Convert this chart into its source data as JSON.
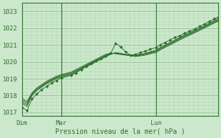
{
  "bg_color": "#cce8cc",
  "grid_major_color": "#88bb88",
  "grid_minor_color": "#aad4aa",
  "line_color": "#2d6e2d",
  "axis_color": "#2d6e2d",
  "text_color": "#2d6e2d",
  "xlabel": "Pression niveau de la mer( hPa )",
  "ylim": [
    1016.8,
    1023.5
  ],
  "yticks": [
    1017,
    1018,
    1019,
    1020,
    1021,
    1022,
    1023
  ],
  "xtick_labels": [
    "Dim",
    "Mar",
    "Lun"
  ],
  "vline_x": [
    0,
    40,
    136
  ],
  "n_points": 200,
  "series": [
    {
      "has_marker": true,
      "points": [
        [
          0,
          1017.3
        ],
        [
          5,
          1017.1
        ],
        [
          10,
          1017.8
        ],
        [
          15,
          1018.1
        ],
        [
          20,
          1018.35
        ],
        [
          25,
          1018.55
        ],
        [
          30,
          1018.75
        ],
        [
          35,
          1018.9
        ],
        [
          40,
          1019.05
        ],
        [
          50,
          1019.2
        ],
        [
          55,
          1019.35
        ],
        [
          60,
          1019.55
        ],
        [
          65,
          1019.75
        ],
        [
          70,
          1019.9
        ],
        [
          75,
          1020.05
        ],
        [
          80,
          1020.2
        ],
        [
          85,
          1020.35
        ],
        [
          90,
          1020.5
        ],
        [
          95,
          1021.1
        ],
        [
          100,
          1020.9
        ],
        [
          105,
          1020.6
        ],
        [
          110,
          1020.4
        ],
        [
          115,
          1020.45
        ],
        [
          120,
          1020.55
        ],
        [
          125,
          1020.65
        ],
        [
          130,
          1020.75
        ],
        [
          136,
          1020.85
        ],
        [
          140,
          1021.0
        ],
        [
          145,
          1021.15
        ],
        [
          150,
          1021.3
        ],
        [
          155,
          1021.45
        ],
        [
          160,
          1021.55
        ],
        [
          165,
          1021.7
        ],
        [
          170,
          1021.82
        ],
        [
          175,
          1021.95
        ],
        [
          180,
          1022.1
        ],
        [
          185,
          1022.25
        ],
        [
          190,
          1022.4
        ],
        [
          195,
          1022.55
        ],
        [
          199,
          1022.65
        ]
      ]
    },
    {
      "has_marker": false,
      "points": [
        [
          0,
          1017.55
        ],
        [
          5,
          1017.35
        ],
        [
          10,
          1018.0
        ],
        [
          15,
          1018.3
        ],
        [
          20,
          1018.5
        ],
        [
          25,
          1018.7
        ],
        [
          30,
          1018.85
        ],
        [
          35,
          1019.0
        ],
        [
          40,
          1019.1
        ],
        [
          50,
          1019.25
        ],
        [
          55,
          1019.4
        ],
        [
          60,
          1019.55
        ],
        [
          65,
          1019.7
        ],
        [
          70,
          1019.85
        ],
        [
          75,
          1020.0
        ],
        [
          80,
          1020.15
        ],
        [
          85,
          1020.3
        ],
        [
          90,
          1020.45
        ],
        [
          95,
          1020.55
        ],
        [
          100,
          1020.5
        ],
        [
          105,
          1020.45
        ],
        [
          110,
          1020.4
        ],
        [
          115,
          1020.4
        ],
        [
          120,
          1020.45
        ],
        [
          125,
          1020.5
        ],
        [
          130,
          1020.6
        ],
        [
          136,
          1020.7
        ],
        [
          140,
          1020.85
        ],
        [
          145,
          1021.0
        ],
        [
          150,
          1021.15
        ],
        [
          155,
          1021.3
        ],
        [
          160,
          1021.45
        ],
        [
          165,
          1021.6
        ],
        [
          170,
          1021.73
        ],
        [
          175,
          1021.87
        ],
        [
          180,
          1022.0
        ],
        [
          185,
          1022.15
        ],
        [
          190,
          1022.3
        ],
        [
          195,
          1022.45
        ],
        [
          199,
          1022.55
        ]
      ]
    },
    {
      "has_marker": false,
      "points": [
        [
          0,
          1017.65
        ],
        [
          5,
          1017.45
        ],
        [
          10,
          1018.05
        ],
        [
          15,
          1018.35
        ],
        [
          20,
          1018.55
        ],
        [
          25,
          1018.75
        ],
        [
          30,
          1018.9
        ],
        [
          35,
          1019.05
        ],
        [
          40,
          1019.15
        ],
        [
          50,
          1019.3
        ],
        [
          55,
          1019.45
        ],
        [
          60,
          1019.6
        ],
        [
          65,
          1019.75
        ],
        [
          70,
          1019.9
        ],
        [
          75,
          1020.05
        ],
        [
          80,
          1020.2
        ],
        [
          85,
          1020.35
        ],
        [
          90,
          1020.48
        ],
        [
          95,
          1020.52
        ],
        [
          100,
          1020.48
        ],
        [
          105,
          1020.44
        ],
        [
          110,
          1020.4
        ],
        [
          115,
          1020.38
        ],
        [
          120,
          1020.42
        ],
        [
          125,
          1020.48
        ],
        [
          130,
          1020.56
        ],
        [
          136,
          1020.65
        ],
        [
          140,
          1020.8
        ],
        [
          145,
          1020.95
        ],
        [
          150,
          1021.1
        ],
        [
          155,
          1021.25
        ],
        [
          160,
          1021.4
        ],
        [
          165,
          1021.55
        ],
        [
          170,
          1021.68
        ],
        [
          175,
          1021.82
        ],
        [
          180,
          1021.96
        ],
        [
          185,
          1022.1
        ],
        [
          190,
          1022.25
        ],
        [
          195,
          1022.4
        ],
        [
          199,
          1022.5
        ]
      ]
    },
    {
      "has_marker": false,
      "points": [
        [
          0,
          1017.75
        ],
        [
          5,
          1017.55
        ],
        [
          10,
          1018.1
        ],
        [
          15,
          1018.4
        ],
        [
          20,
          1018.6
        ],
        [
          25,
          1018.8
        ],
        [
          30,
          1018.95
        ],
        [
          35,
          1019.1
        ],
        [
          40,
          1019.2
        ],
        [
          50,
          1019.35
        ],
        [
          55,
          1019.5
        ],
        [
          60,
          1019.65
        ],
        [
          65,
          1019.8
        ],
        [
          70,
          1019.95
        ],
        [
          75,
          1020.1
        ],
        [
          80,
          1020.25
        ],
        [
          85,
          1020.4
        ],
        [
          90,
          1020.5
        ],
        [
          95,
          1020.5
        ],
        [
          100,
          1020.46
        ],
        [
          105,
          1020.42
        ],
        [
          110,
          1020.38
        ],
        [
          115,
          1020.35
        ],
        [
          120,
          1020.38
        ],
        [
          125,
          1020.44
        ],
        [
          130,
          1020.52
        ],
        [
          136,
          1020.6
        ],
        [
          140,
          1020.75
        ],
        [
          145,
          1020.9
        ],
        [
          150,
          1021.05
        ],
        [
          155,
          1021.2
        ],
        [
          160,
          1021.35
        ],
        [
          165,
          1021.5
        ],
        [
          170,
          1021.63
        ],
        [
          175,
          1021.77
        ],
        [
          180,
          1021.91
        ],
        [
          185,
          1022.05
        ],
        [
          190,
          1022.2
        ],
        [
          195,
          1022.35
        ],
        [
          199,
          1022.45
        ]
      ]
    },
    {
      "has_marker": false,
      "points": [
        [
          0,
          1017.85
        ],
        [
          5,
          1017.65
        ],
        [
          10,
          1018.15
        ],
        [
          15,
          1018.45
        ],
        [
          20,
          1018.65
        ],
        [
          25,
          1018.85
        ],
        [
          30,
          1019.0
        ],
        [
          35,
          1019.15
        ],
        [
          40,
          1019.25
        ],
        [
          50,
          1019.4
        ],
        [
          55,
          1019.55
        ],
        [
          60,
          1019.7
        ],
        [
          65,
          1019.85
        ],
        [
          70,
          1020.0
        ],
        [
          75,
          1020.15
        ],
        [
          80,
          1020.3
        ],
        [
          85,
          1020.45
        ],
        [
          90,
          1020.52
        ],
        [
          95,
          1020.48
        ],
        [
          100,
          1020.44
        ],
        [
          105,
          1020.4
        ],
        [
          110,
          1020.36
        ],
        [
          115,
          1020.32
        ],
        [
          120,
          1020.35
        ],
        [
          125,
          1020.4
        ],
        [
          130,
          1020.48
        ],
        [
          136,
          1020.56
        ],
        [
          140,
          1020.7
        ],
        [
          145,
          1020.85
        ],
        [
          150,
          1021.0
        ],
        [
          155,
          1021.15
        ],
        [
          160,
          1021.3
        ],
        [
          165,
          1021.45
        ],
        [
          170,
          1021.58
        ],
        [
          175,
          1021.72
        ],
        [
          180,
          1021.86
        ],
        [
          185,
          1022.0
        ],
        [
          190,
          1022.15
        ],
        [
          195,
          1022.3
        ],
        [
          199,
          1022.4
        ]
      ]
    }
  ]
}
